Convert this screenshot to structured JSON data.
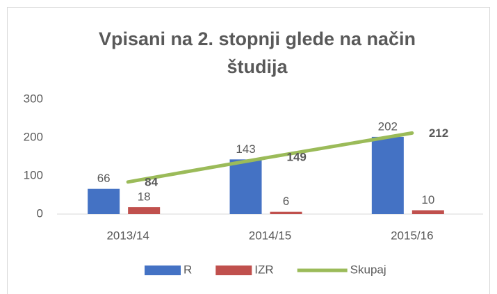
{
  "chart_data": {
    "type": "bar",
    "title": "Vpisani na 2. stopnji glede na način študija",
    "categories": [
      "2013/14",
      "2014/15",
      "2015/16"
    ],
    "series": [
      {
        "name": "R",
        "color": "#4472c4",
        "values": [
          66,
          143,
          202
        ]
      },
      {
        "name": "IZR",
        "color": "#c0504d",
        "values": [
          18,
          6,
          10
        ]
      },
      {
        "name": "Skupaj",
        "type": "line",
        "color": "#9bbb59",
        "values": [
          84,
          149,
          212
        ]
      }
    ],
    "ylim": [
      0,
      300
    ],
    "yticks": [
      0,
      100,
      200,
      300
    ],
    "grid": false,
    "legend": "bottom"
  }
}
